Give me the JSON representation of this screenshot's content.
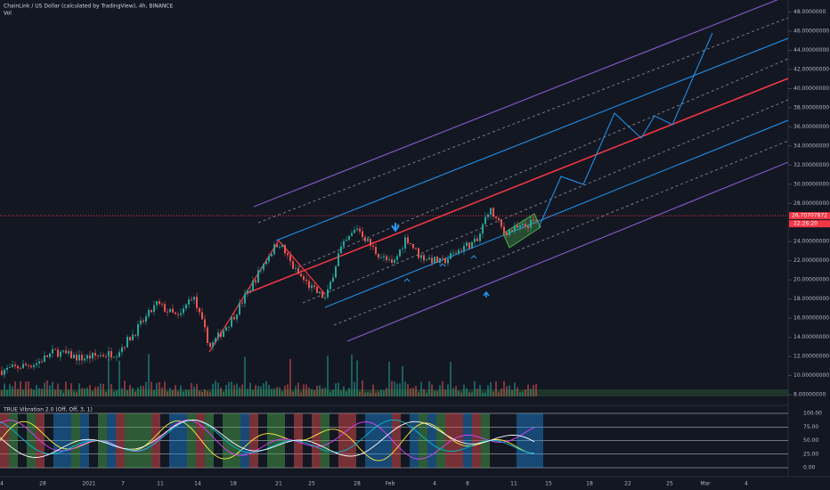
{
  "header": {
    "title": "ChainLink / US Dollar (calculated by TradingView), 4h, BINANCE",
    "volume": "Vol"
  },
  "price_axis": {
    "ticks": [
      {
        "value": 48,
        "label": "48.0000000"
      },
      {
        "value": 46,
        "label": "46.00000000"
      },
      {
        "value": 44,
        "label": "44.00000000"
      },
      {
        "value": 42,
        "label": "42.00000000"
      },
      {
        "value": 40,
        "label": "40.00000000"
      },
      {
        "value": 38,
        "label": "38.00000000"
      },
      {
        "value": 36,
        "label": "36.00000000"
      },
      {
        "value": 34,
        "label": "34.00000000"
      },
      {
        "value": 32,
        "label": "32.00000000"
      },
      {
        "value": 30,
        "label": "30.00000000"
      },
      {
        "value": 28,
        "label": "28.00000000"
      },
      {
        "value": 24,
        "label": "24.00000000"
      },
      {
        "value": 22,
        "label": "22.00000000"
      },
      {
        "value": 20,
        "label": "20.00000000"
      },
      {
        "value": 18,
        "label": "18.00000000"
      },
      {
        "value": 16,
        "label": "16.00000000"
      },
      {
        "value": 14,
        "label": "14.00000000"
      },
      {
        "value": 12,
        "label": "12.00000000"
      },
      {
        "value": 10,
        "label": "10.00000000"
      },
      {
        "value": 8,
        "label": "8.00000000"
      }
    ],
    "last_price": {
      "value": 26.70707872,
      "label": "26.70707872"
    },
    "countdown": "22:26:20"
  },
  "indicator": {
    "title": "TRUE Vibration 2.0 (Off, Off, 3, 1)",
    "ticks": [
      {
        "value": 100,
        "label": "100.00"
      },
      {
        "value": 75,
        "label": "75.00"
      },
      {
        "value": 50,
        "label": "50.00"
      },
      {
        "value": 25,
        "label": "25.00"
      },
      {
        "value": 0,
        "label": "0.00"
      }
    ]
  },
  "x_axis": {
    "labels": [
      "4",
      "28",
      "2021",
      "7",
      "11",
      "14",
      "18",
      "21",
      "25",
      "28",
      "Feb",
      "4",
      "8",
      "11",
      "15",
      "18",
      "22",
      "25",
      "Mar",
      "4"
    ]
  }
}
